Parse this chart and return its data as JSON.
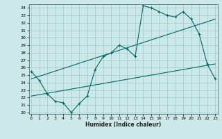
{
  "xlabel": "Humidex (Indice chaleur)",
  "bg_color": "#cce8e8",
  "line_color": "#006666",
  "grid_color": "#99cccc",
  "x_ticks": [
    0,
    1,
    2,
    3,
    4,
    5,
    6,
    7,
    8,
    9,
    10,
    11,
    12,
    13,
    14,
    15,
    16,
    17,
    18,
    19,
    20,
    21,
    22,
    23
  ],
  "y_ticks": [
    20,
    21,
    22,
    23,
    24,
    25,
    26,
    27,
    28,
    29,
    30,
    31,
    32,
    33,
    34
  ],
  "ylim": [
    19.8,
    34.5
  ],
  "xlim": [
    -0.3,
    23.3
  ],
  "line1_x": [
    0,
    1,
    2,
    3,
    4,
    5,
    6,
    7,
    8,
    9,
    10,
    11,
    12,
    13,
    14,
    15,
    16,
    17,
    18,
    19,
    20,
    21,
    22,
    23
  ],
  "line1_y": [
    25.5,
    24.3,
    22.5,
    21.5,
    21.3,
    20.0,
    21.2,
    22.2,
    25.8,
    27.5,
    28.0,
    29.0,
    28.5,
    27.5,
    34.3,
    34.0,
    33.5,
    33.0,
    32.8,
    33.5,
    32.5,
    30.5,
    26.5,
    24.5
  ],
  "line2_x": [
    0,
    23
  ],
  "line2_y": [
    24.5,
    32.5
  ],
  "line3_x": [
    0,
    23
  ],
  "line3_y": [
    22.2,
    26.5
  ]
}
